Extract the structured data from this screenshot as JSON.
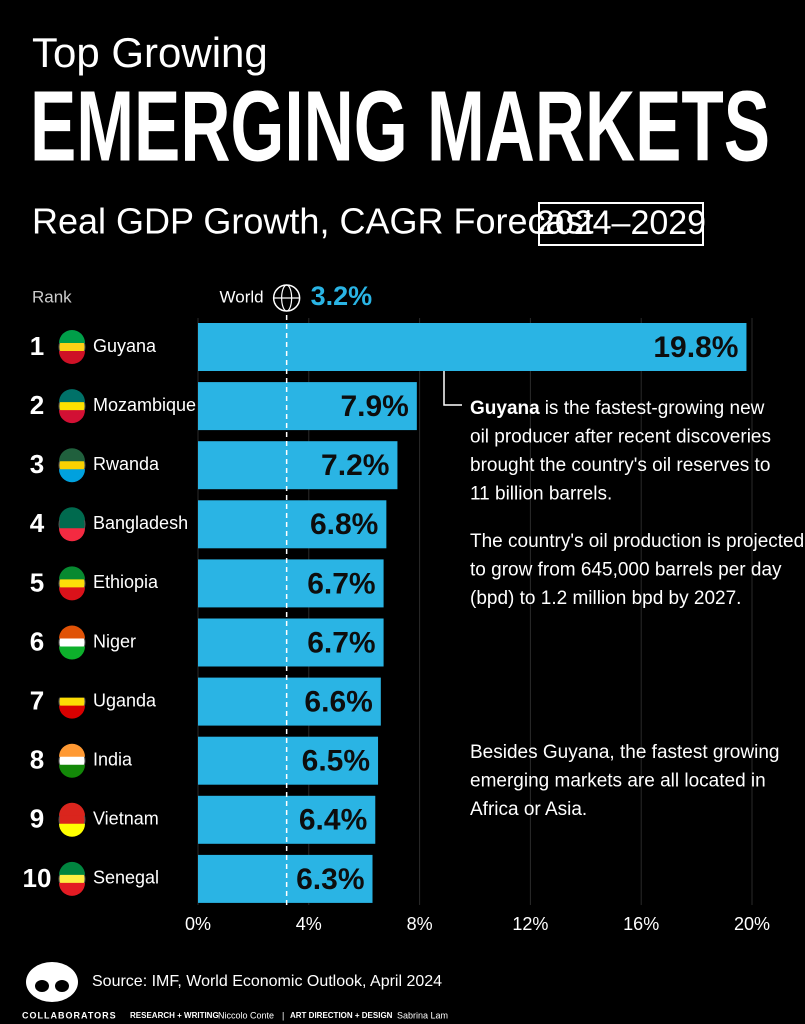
{
  "chart_data": {
    "type": "bar",
    "title": "Top Growing",
    "headline": "EMERGING MARKETS",
    "subtitle": "Real GDP Growth, CAGR Forecast",
    "period": "2024–2029",
    "rank_label": "Rank",
    "ranks": [
      1,
      2,
      3,
      4,
      5,
      6,
      7,
      8,
      9,
      10
    ],
    "categories": [
      "Guyana",
      "Mozambique",
      "Rwanda",
      "Bangladesh",
      "Ethiopia",
      "Niger",
      "Uganda",
      "India",
      "Vietnam",
      "Senegal"
    ],
    "values": [
      19.8,
      7.9,
      7.2,
      6.8,
      6.7,
      6.7,
      6.6,
      6.5,
      6.4,
      6.3
    ],
    "value_labels": [
      "19.8%",
      "7.9%",
      "7.2%",
      "6.8%",
      "6.7%",
      "6.7%",
      "6.6%",
      "6.5%",
      "6.4%",
      "6.3%"
    ],
    "color": "#2ab4e4",
    "xlim": [
      0,
      20
    ],
    "xticks": [
      {
        "value": 0,
        "label": "0%"
      },
      {
        "value": 4,
        "label": "4%"
      },
      {
        "value": 8,
        "label": "8%"
      },
      {
        "value": 12,
        "label": "12%"
      },
      {
        "value": 16,
        "label": "16%"
      },
      {
        "value": 20,
        "label": "20%"
      }
    ],
    "grid": true,
    "reference": {
      "name": "World",
      "value": 3.2,
      "label": "3.2%"
    },
    "annotations": [
      {
        "bold": "Guyana",
        "lines": [
          "is the fastest-growing new",
          "oil producer after recent discoveries",
          "brought the country's oil reserves to",
          "11 billion barrels."
        ]
      },
      {
        "lines": [
          "The country's oil production is projected",
          "to grow from 645,000 barrels per day",
          "(bpd) to 1.2 million bpd by 2027."
        ]
      },
      {
        "lines": [
          "Besides Guyana, the fastest growing",
          "emerging markets are all located in",
          "Africa or Asia."
        ]
      }
    ],
    "source": "Source: IMF, World Economic Outlook, April 2024",
    "credits": {
      "brand": "COLLABORATORS",
      "research_label": "RESEARCH + WRITING",
      "research_name": "Niccolo Conte",
      "separator": "|",
      "design_label": "ART DIRECTION + DESIGN",
      "design_name": "Sabrina Lam"
    }
  }
}
